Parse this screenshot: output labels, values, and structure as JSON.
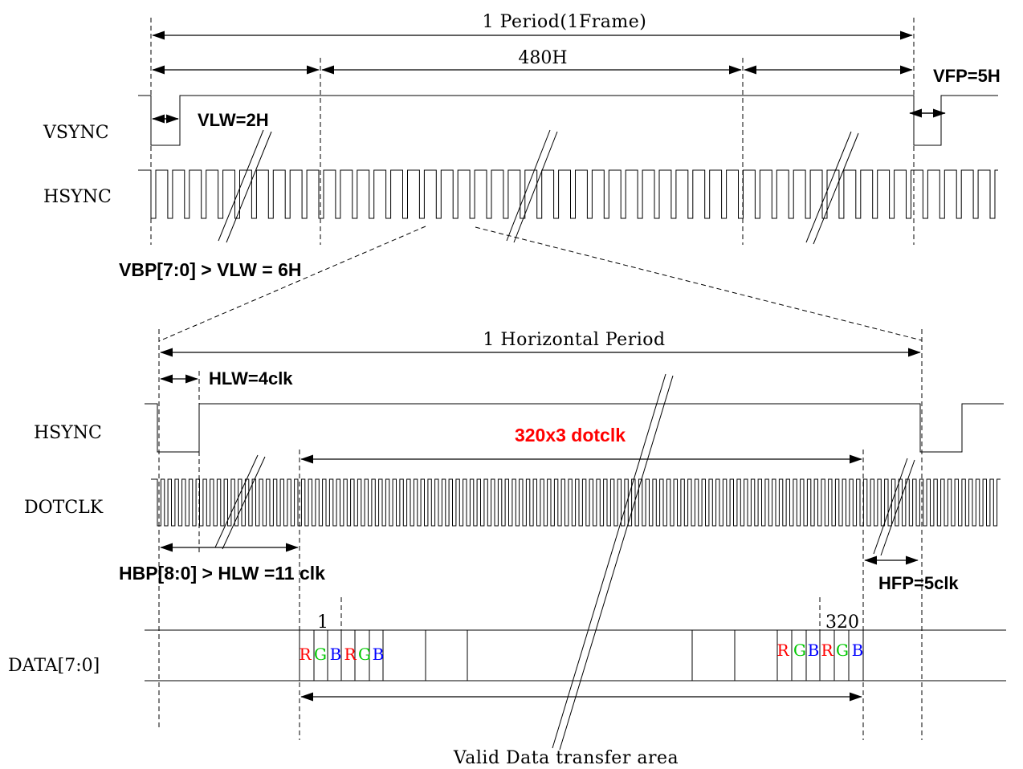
{
  "top": {
    "period_label": "1 Period(1Frame)",
    "lines_label": "480H",
    "vsync_label": "VSYNC",
    "hsync_label": "HSYNC",
    "vlw_label": "VLW=2H",
    "vfp_label": "VFP=5H",
    "vbp_label": "VBP[7:0] > VLW = 6H"
  },
  "bottom": {
    "hperiod_label": "1 Horizontal Period",
    "hlw_label": "HLW=4clk",
    "hsync_label": "HSYNC",
    "dotclk_label": "DOTCLK",
    "dotclk_count_label": "320x3 dotclk",
    "hbp_label": "HBP[8:0] > HLW =11 clk",
    "hfp_label": "HFP=5clk",
    "data_label": "DATA[7:0]",
    "first_pixel": "1",
    "last_pixel": "320",
    "valid_area_label": "Valid Data transfer area"
  },
  "rgb": {
    "letters": [
      "R",
      "G",
      "B"
    ],
    "colors": {
      "R": "#ff0000",
      "G": "#00c800",
      "B": "#0000ff"
    }
  },
  "colors": {
    "line": "#000000",
    "accent": "#ff0000"
  }
}
